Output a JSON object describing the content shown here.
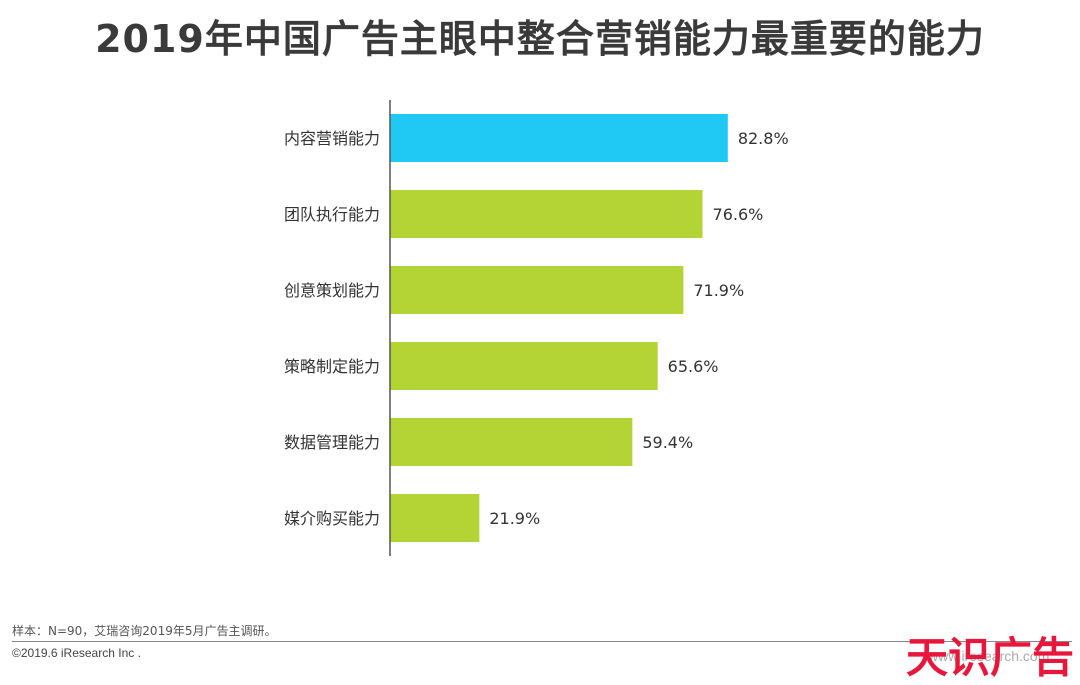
{
  "title": "2019年中国广告主眼中整合营销能力最重要的能力",
  "chart_data": {
    "type": "bar",
    "orientation": "horizontal",
    "title": "2019年中国广告主眼中整合营销能力最重要的能力",
    "categories": [
      "内容营销能力",
      "团队执行能力",
      "创意策划能力",
      "策略制定能力",
      "数据管理能力",
      "媒介购买能力"
    ],
    "values": [
      82.8,
      76.6,
      71.9,
      65.6,
      59.4,
      21.9
    ],
    "value_labels": [
      "82.8%",
      "76.6%",
      "71.9%",
      "65.6%",
      "59.4%",
      "21.9%"
    ],
    "unit": "%",
    "xlim": [
      0,
      100
    ],
    "grid": false,
    "legend": "none",
    "colors": {
      "highlight": "#1fc9f4",
      "default": "#b4d334",
      "axis": "#555555"
    },
    "highlight_index": 0
  },
  "footer": {
    "source": "样本：N=90，艾瑞咨询2019年5月广告主调研。",
    "copyright": "©2019.6 iResearch Inc ."
  },
  "watermark": {
    "text": "天识广告",
    "url": "www.iresearch.com"
  }
}
